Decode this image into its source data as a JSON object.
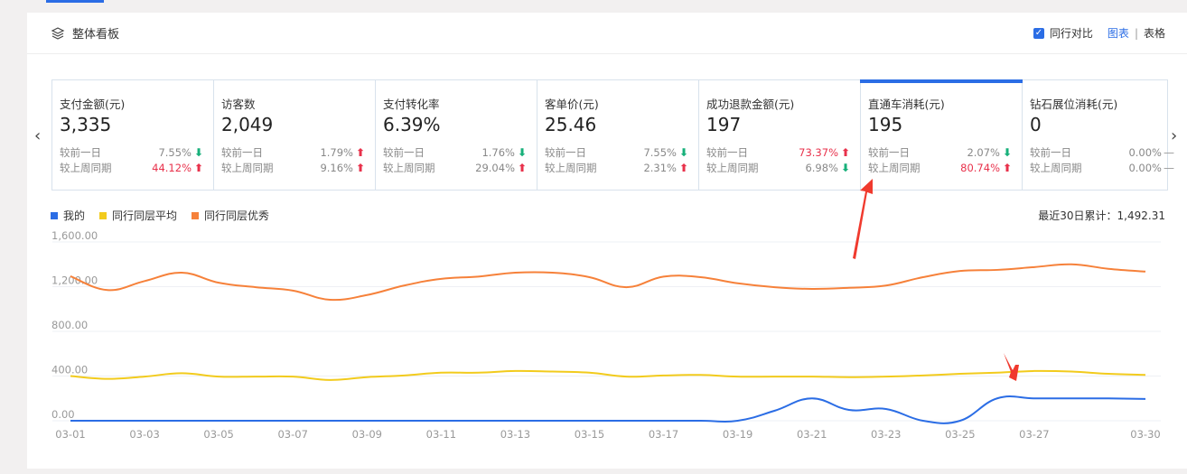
{
  "header": {
    "title": "整体看板",
    "compare_label": "同行对比",
    "compare_checked": true,
    "view_chart": "图表",
    "view_sep": "|",
    "view_table": "表格"
  },
  "metrics": [
    {
      "label": "支付金额(元)",
      "value": "3,335",
      "day_label": "较前一日",
      "day_pct": "7.55%",
      "day_dir": "down",
      "week_label": "较上周同期",
      "week_pct": "44.12%",
      "week_dir": "up"
    },
    {
      "label": "访客数",
      "value": "2,049",
      "day_label": "较前一日",
      "day_pct": "1.79%",
      "day_dir": "up",
      "week_label": "较上周同期",
      "week_pct": "9.16%",
      "week_dir": "up"
    },
    {
      "label": "支付转化率",
      "value": "6.39%",
      "day_label": "较前一日",
      "day_pct": "1.76%",
      "day_dir": "down",
      "week_label": "较上周同期",
      "week_pct": "29.04%",
      "week_dir": "up"
    },
    {
      "label": "客单价(元)",
      "value": "25.46",
      "day_label": "较前一日",
      "day_pct": "7.55%",
      "day_dir": "down",
      "week_label": "较上周同期",
      "week_pct": "2.31%",
      "week_dir": "up"
    },
    {
      "label": "成功退款金额(元)",
      "value": "197",
      "day_label": "较前一日",
      "day_pct": "73.37%",
      "day_dir": "up",
      "week_label": "较上周同期",
      "week_pct": "6.98%",
      "week_dir": "down"
    },
    {
      "label": "直通车消耗(元)",
      "value": "195",
      "day_label": "较前一日",
      "day_pct": "2.07%",
      "day_dir": "down",
      "week_label": "较上周同期",
      "week_pct": "80.74%",
      "week_dir": "up",
      "active": true
    },
    {
      "label": "钻石展位消耗(元)",
      "value": "0",
      "day_label": "较前一日",
      "day_pct": "0.00%",
      "day_dir": "flat",
      "week_label": "较上周同期",
      "week_pct": "0.00%",
      "week_dir": "flat"
    }
  ],
  "total": "最近30日累计：1,492.31",
  "chart_data": {
    "type": "line",
    "ylim": [
      0,
      1600
    ],
    "yticks": [
      "0.00",
      "400.00",
      "800.00",
      "1,200.00",
      "1,600.00"
    ],
    "x": [
      "03-01",
      "03-02",
      "03-03",
      "03-04",
      "03-05",
      "03-06",
      "03-07",
      "03-08",
      "03-09",
      "03-10",
      "03-11",
      "03-12",
      "03-13",
      "03-14",
      "03-15",
      "03-16",
      "03-17",
      "03-18",
      "03-19",
      "03-20",
      "03-21",
      "03-22",
      "03-23",
      "03-24",
      "03-25",
      "03-26",
      "03-27",
      "03-28",
      "03-29",
      "03-30"
    ],
    "xtick_labels": [
      "03-01",
      "03-03",
      "03-05",
      "03-07",
      "03-09",
      "03-11",
      "03-13",
      "03-15",
      "03-17",
      "03-19",
      "03-21",
      "03-23",
      "03-25",
      "03-27",
      "03-30"
    ],
    "grid": true,
    "legend": "top-left",
    "series": [
      {
        "name": "我的",
        "color": "#2b6de5",
        "values": [
          0,
          0,
          0,
          0,
          0,
          0,
          0,
          0,
          0,
          0,
          0,
          0,
          0,
          0,
          0,
          0,
          0,
          0,
          0,
          90,
          200,
          97,
          105,
          0,
          0,
          200,
          200,
          200,
          200,
          195
        ]
      },
      {
        "name": "同行同层平均",
        "color": "#f2cb1d",
        "values": [
          400,
          375,
          395,
          425,
          395,
          395,
          395,
          365,
          390,
          405,
          430,
          430,
          445,
          440,
          430,
          395,
          405,
          410,
          395,
          395,
          395,
          390,
          395,
          405,
          420,
          430,
          445,
          440,
          420,
          410
        ]
      },
      {
        "name": "同行同层优秀",
        "color": "#f6813a",
        "values": [
          1293,
          1170,
          1250,
          1325,
          1235,
          1195,
          1165,
          1083,
          1125,
          1210,
          1270,
          1290,
          1325,
          1325,
          1285,
          1195,
          1290,
          1285,
          1230,
          1195,
          1180,
          1190,
          1210,
          1285,
          1340,
          1350,
          1375,
          1400,
          1360,
          1335
        ]
      }
    ]
  }
}
